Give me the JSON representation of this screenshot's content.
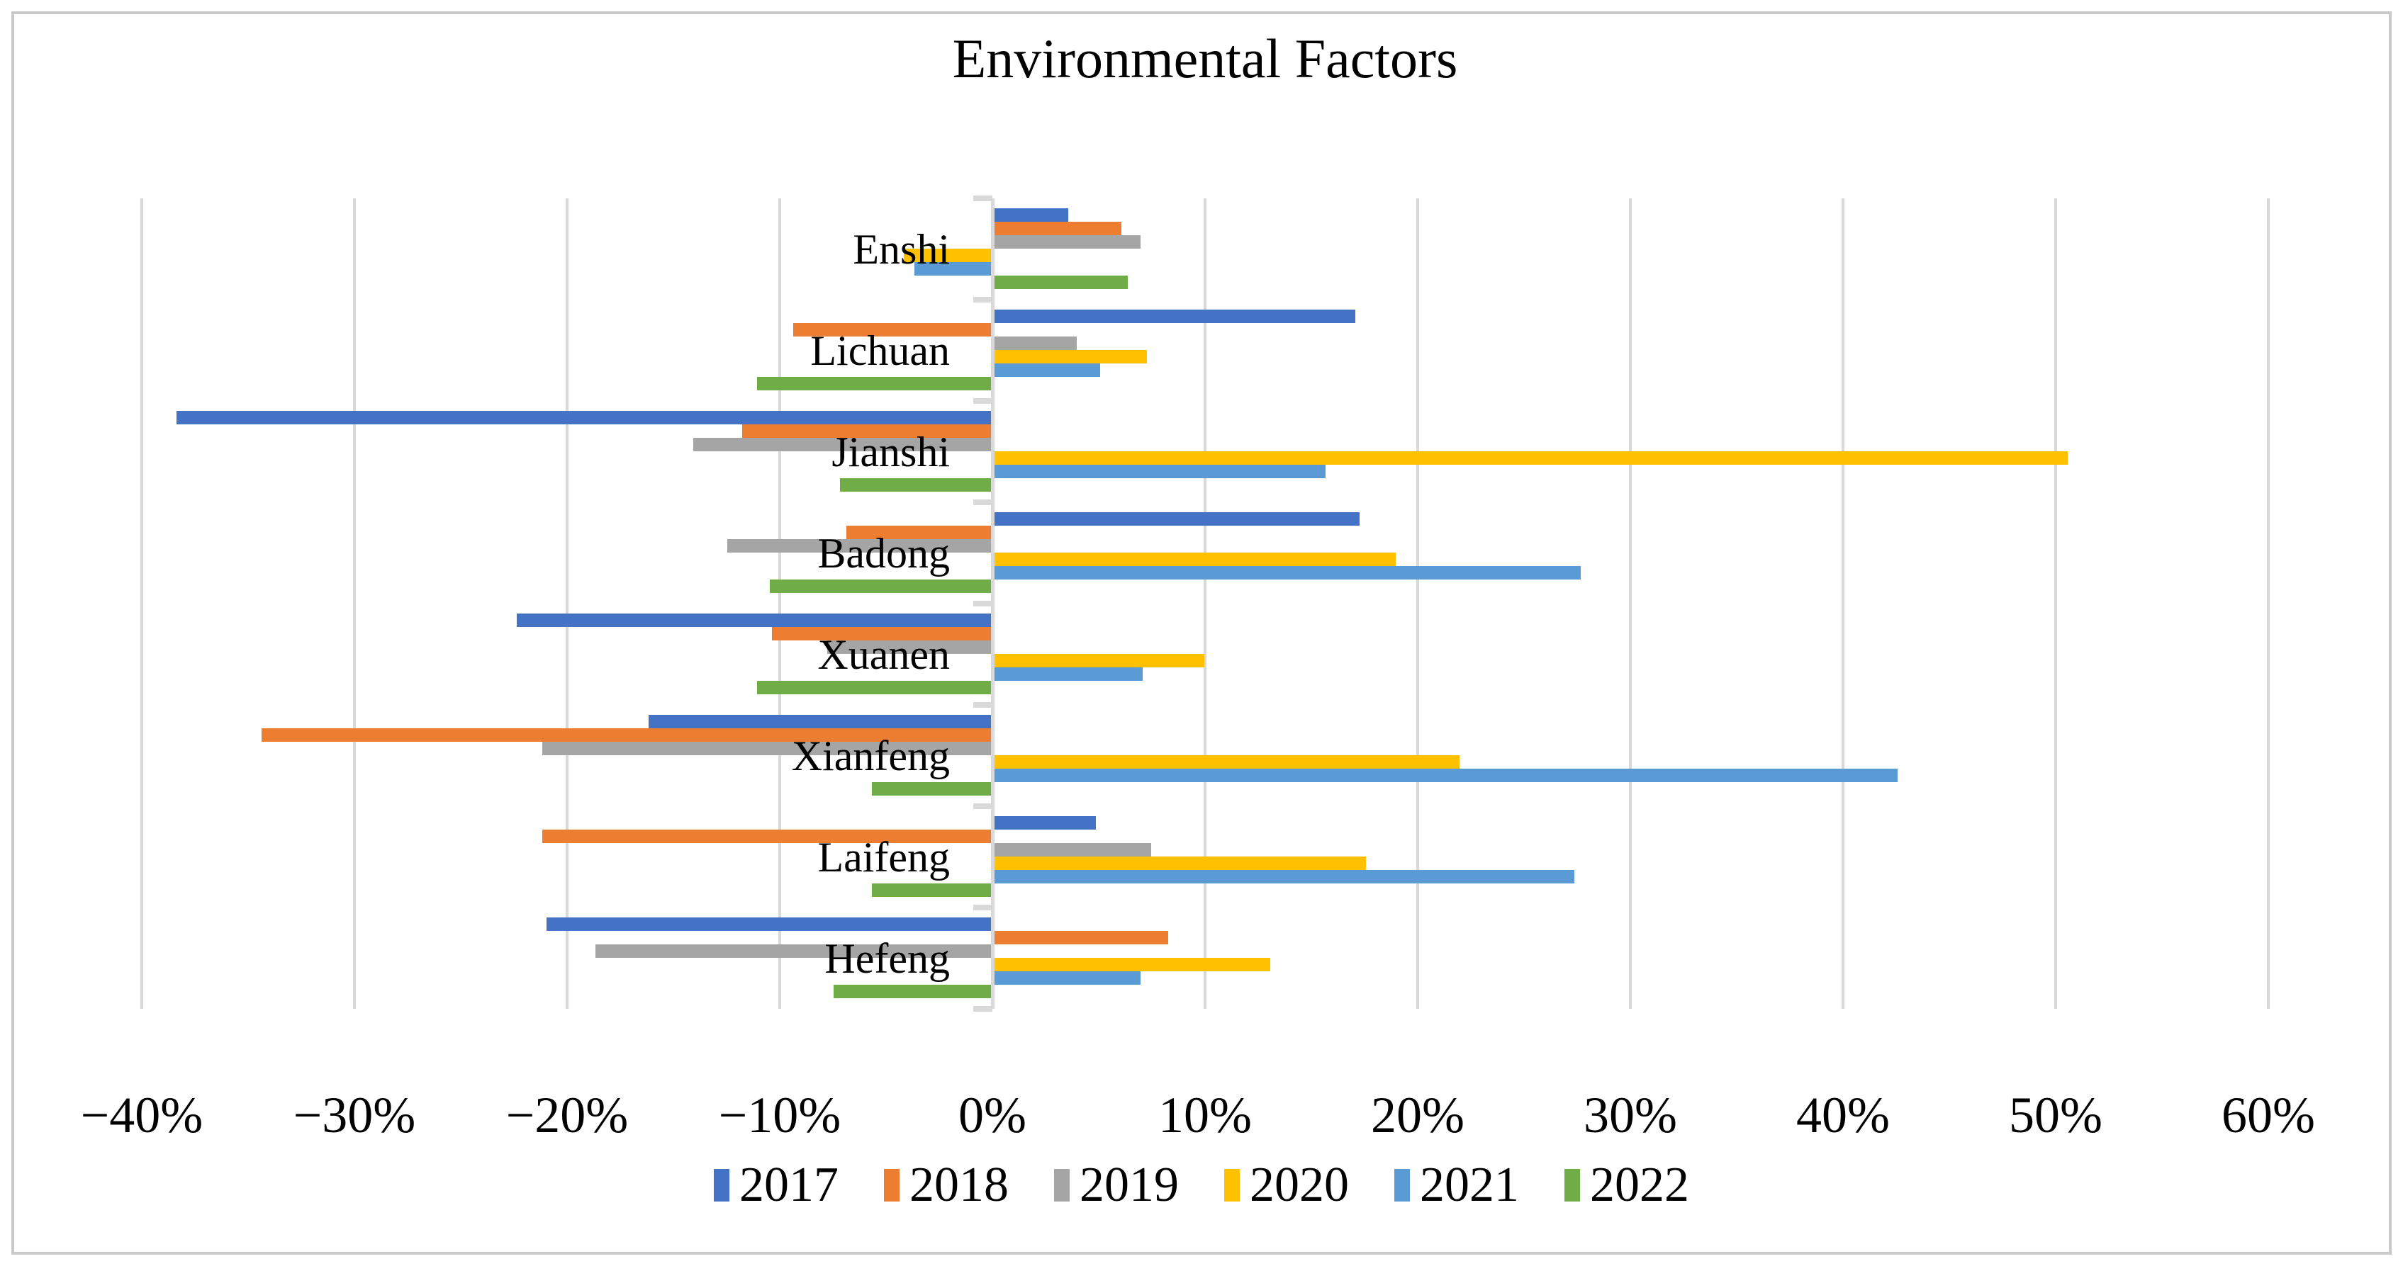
{
  "title": "Environmental Factors",
  "colors": {
    "gridline": "#d9d9d9",
    "axis_line": "#d9d9d9",
    "frame_border": "#c9c9c9",
    "text": "#000000"
  },
  "chart_data": {
    "type": "bar",
    "orientation": "horizontal",
    "title": "Environmental Factors",
    "grid": true,
    "legend_position": "bottom",
    "xlim": [
      -40,
      60
    ],
    "unit": "%",
    "x_ticks": [
      {
        "value": -40,
        "label": "−40%"
      },
      {
        "value": -30,
        "label": "−30%"
      },
      {
        "value": -20,
        "label": "−20%"
      },
      {
        "value": -10,
        "label": "−10%"
      },
      {
        "value": 0,
        "label": "0%"
      },
      {
        "value": 10,
        "label": "10%"
      },
      {
        "value": 20,
        "label": "20%"
      },
      {
        "value": 30,
        "label": "30%"
      },
      {
        "value": 40,
        "label": "40%"
      },
      {
        "value": 50,
        "label": "50%"
      },
      {
        "value": 60,
        "label": "60%"
      }
    ],
    "categories": [
      "Enshi",
      "Lichuan",
      "Jianshi",
      "Badong",
      "Xuanen",
      "Xianfeng",
      "Laifeng",
      "Hefeng"
    ],
    "series": [
      {
        "name": "2017",
        "color": "#4472C4",
        "values": [
          3.5,
          17.0,
          -38.3,
          17.2,
          -22.3,
          -16.1,
          4.8,
          -20.9
        ]
      },
      {
        "name": "2018",
        "color": "#ED7D31",
        "values": [
          6.0,
          -9.3,
          -11.7,
          -6.8,
          -10.3,
          -34.3,
          -21.1,
          8.2
        ]
      },
      {
        "name": "2019",
        "color": "#A5A5A5",
        "values": [
          6.9,
          3.9,
          -14.0,
          -12.4,
          -7.7,
          -21.1,
          7.4,
          -18.6
        ]
      },
      {
        "name": "2020",
        "color": "#FFC000",
        "values": [
          -4.1,
          7.2,
          50.5,
          18.9,
          9.9,
          21.9,
          17.5,
          13.0
        ]
      },
      {
        "name": "2021",
        "color": "#5B9BD5",
        "values": [
          -3.6,
          5.0,
          15.6,
          27.6,
          7.0,
          42.5,
          27.3,
          6.9
        ]
      },
      {
        "name": "2022",
        "color": "#70AD47",
        "values": [
          6.3,
          -11.0,
          -7.1,
          -10.4,
          -11.0,
          -5.6,
          -5.6,
          -7.4
        ]
      }
    ]
  }
}
